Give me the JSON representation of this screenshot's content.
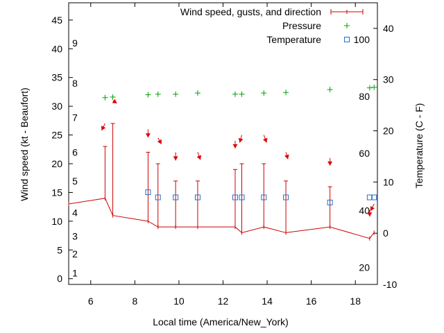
{
  "chart_data": {
    "type": "line",
    "xlabel": "Local time (America/New_York)",
    "ylabel": "Wind speed (kt - Beaufort)",
    "y2label": "Temperature (C - F)",
    "xlim": [
      5,
      19
    ],
    "ylim": [
      -1,
      48
    ],
    "y2lim": [
      -10,
      45
    ],
    "x_ticks": [
      6,
      8,
      10,
      12,
      14,
      16,
      18
    ],
    "y_ticks": [
      0,
      5,
      10,
      15,
      20,
      25,
      30,
      35,
      40,
      45
    ],
    "y2_ticks": [
      -10,
      0,
      10,
      20,
      30,
      40
    ],
    "beaufort_labels": [
      {
        "label": "1",
        "kt": 1
      },
      {
        "label": "2",
        "kt": 4.3
      },
      {
        "label": "3",
        "kt": 7.4
      },
      {
        "label": "4",
        "kt": 11.5
      },
      {
        "label": "5",
        "kt": 17
      },
      {
        "label": "6",
        "kt": 22
      },
      {
        "label": "7",
        "kt": 28
      },
      {
        "label": "8",
        "kt": 34
      },
      {
        "label": "9",
        "kt": 41
      }
    ],
    "fahrenheit_labels": [
      {
        "label": "20",
        "c": -6.7
      },
      {
        "label": "40",
        "c": 4.4
      },
      {
        "label": "60",
        "c": 15.6
      },
      {
        "label": "80",
        "c": 26.7
      },
      {
        "label": "100",
        "c": 37.8
      }
    ],
    "legend": {
      "position": "top-right",
      "entries": [
        {
          "label": "Wind speed, gusts, and direction",
          "color": "#cc0000"
        },
        {
          "label": "Pressure",
          "color": "#00a000"
        },
        {
          "label": "Temperature",
          "color": "#1f6fd0"
        }
      ]
    },
    "series": [
      {
        "name": "Wind speed, gusts, and direction",
        "color": "#cc0000",
        "x": [
          5,
          6.65,
          7,
          8.6,
          9.05,
          9.85,
          10.85,
          12.55,
          12.85,
          13.85,
          14.85,
          16.85,
          18.65,
          18.85
        ],
        "values": [
          13,
          14,
          11,
          10,
          9,
          9,
          9,
          9,
          8,
          9,
          8,
          9,
          7,
          8
        ],
        "gusts": [
          null,
          23,
          27,
          22,
          20,
          17,
          17,
          19,
          20,
          20,
          17,
          16,
          null,
          null
        ]
      },
      {
        "name": "Pressure",
        "color": "#00a000",
        "x": [
          6.65,
          7,
          8.6,
          9.05,
          9.85,
          10.85,
          12.55,
          12.85,
          13.85,
          14.85,
          16.85,
          18.65,
          18.85
        ],
        "values": [
          31.5,
          31.6,
          32,
          32.1,
          32.1,
          32.3,
          32.1,
          32.1,
          32.3,
          32.4,
          32.9,
          33.2,
          33.3
        ]
      },
      {
        "name": "Temperature",
        "color": "#1f6fd0",
        "x": [
          8.6,
          9.05,
          9.85,
          10.85,
          12.55,
          12.85,
          13.85,
          14.85,
          16.85,
          18.65,
          18.85
        ],
        "values": [
          8,
          7,
          7,
          7,
          7,
          7,
          7,
          7,
          6,
          7,
          7
        ]
      }
    ],
    "wind_arrows": [
      {
        "x": 6.65,
        "y": 27,
        "dx": -5,
        "dy": 10
      },
      {
        "x": 7,
        "y": 31,
        "dx": 6,
        "dy": 4
      },
      {
        "x": 8.6,
        "y": 26,
        "dx": 0,
        "dy": 12
      },
      {
        "x": 9.05,
        "y": 24.5,
        "dx": 5,
        "dy": 9
      },
      {
        "x": 9.85,
        "y": 22,
        "dx": 0,
        "dy": 12
      },
      {
        "x": 10.85,
        "y": 22,
        "dx": 4,
        "dy": 11
      },
      {
        "x": 12.55,
        "y": 24,
        "dx": 0,
        "dy": 11
      },
      {
        "x": 12.85,
        "y": 25,
        "dx": -3,
        "dy": 11
      },
      {
        "x": 13.85,
        "y": 25,
        "dx": 4,
        "dy": 11
      },
      {
        "x": 14.85,
        "y": 22,
        "dx": 3,
        "dy": 10
      },
      {
        "x": 16.85,
        "y": 21,
        "dx": 0,
        "dy": 11
      },
      {
        "x": 18.65,
        "y": 12,
        "dx": 0,
        "dy": 10
      },
      {
        "x": 18.85,
        "y": 13,
        "dx": -5,
        "dy": 10
      }
    ]
  }
}
